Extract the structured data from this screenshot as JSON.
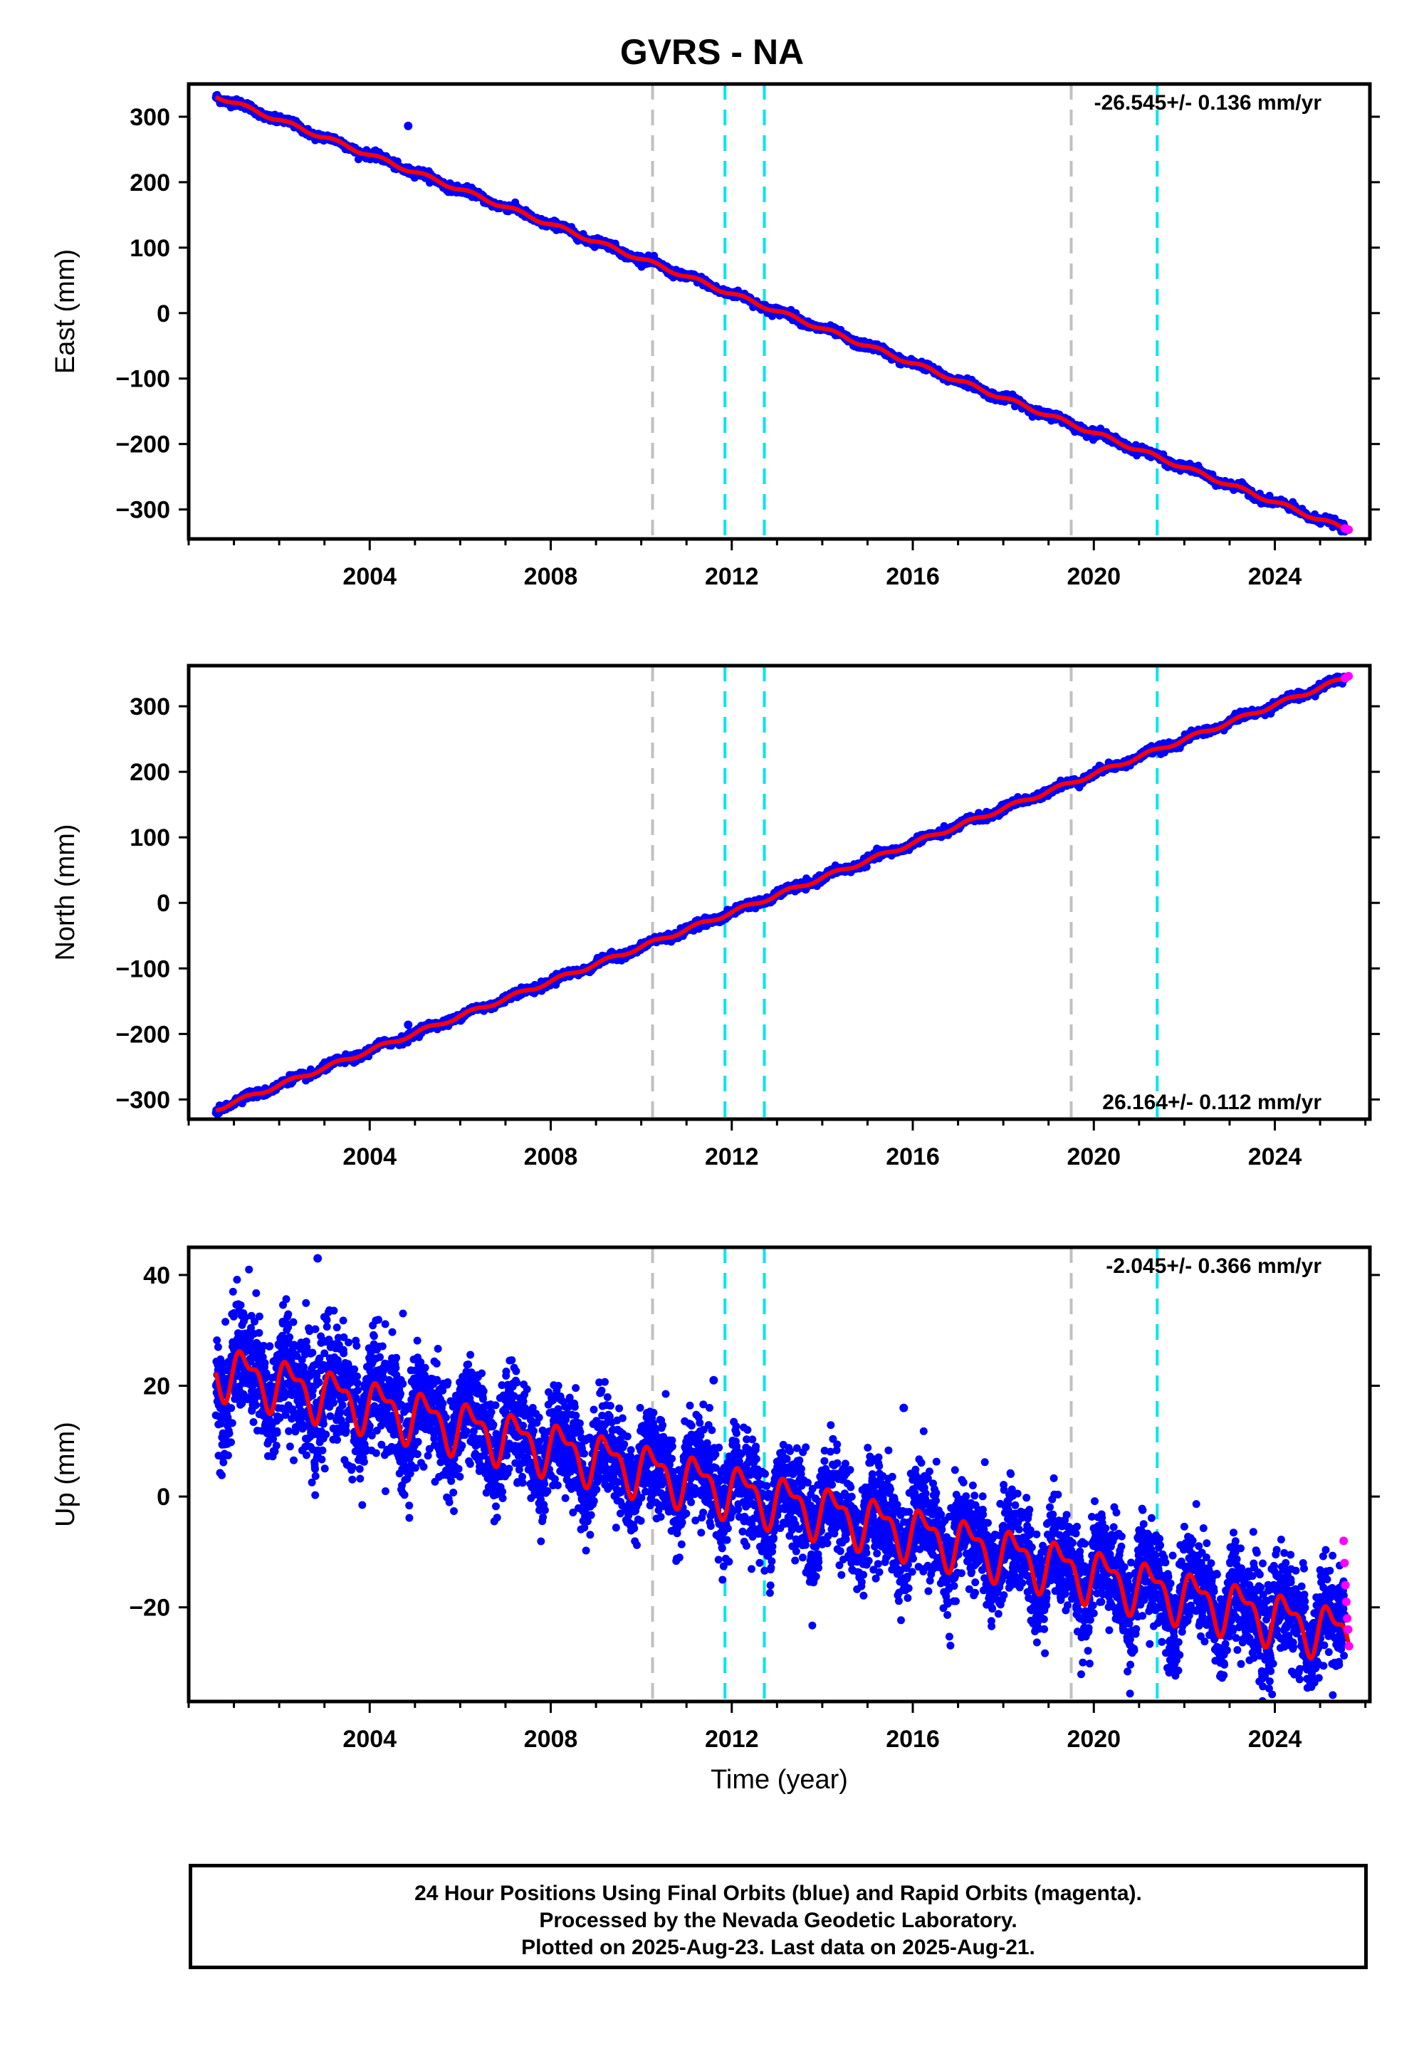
{
  "title": "GVRS - NA",
  "colors": {
    "final_orbits": "#0000ff",
    "rapid_orbits": "#ff00ff",
    "model": "#ff0000",
    "equipment_change": "#c0c0c0",
    "earthquake": "#00e5ee"
  },
  "xlabel": "Time (year)",
  "xticks": [
    2004,
    2008,
    2012,
    2016,
    2020,
    2024
  ],
  "chart_data": [
    {
      "type": "scatter",
      "component": "east",
      "ylabel": "East (mm)",
      "rate_text": "-26.545+/- 0.136 mm/yr",
      "xlim": [
        2000.0,
        2026.1
      ],
      "ylim": [
        -345,
        350
      ],
      "yticks": [
        300,
        200,
        100,
        0,
        -100,
        -200,
        -300
      ],
      "grid": false,
      "trend": {
        "t0": 2000.6,
        "y0": 332,
        "t1": 2025.63,
        "y1": -332
      },
      "seasonal_amplitude": 3,
      "scatter_noise": 3,
      "outliers": [
        {
          "x": 2004.85,
          "y": 286
        }
      ],
      "rapid_points": [
        {
          "x": 2025.55,
          "y": -329
        },
        {
          "x": 2025.6,
          "y": -330
        },
        {
          "x": 2025.63,
          "y": -331
        }
      ],
      "vlines_equipment": [
        2010.25,
        2019.5
      ],
      "vlines_earthquake": [
        2011.85,
        2012.72,
        2021.4
      ]
    },
    {
      "type": "scatter",
      "component": "north",
      "ylabel": "North (mm)",
      "rate_text": "26.164+/- 0.112 mm/yr",
      "xlim": [
        2000.0,
        2026.1
      ],
      "ylim": [
        -330,
        362
      ],
      "yticks": [
        300,
        200,
        100,
        0,
        -100,
        -200,
        -300
      ],
      "grid": false,
      "trend": {
        "t0": 2000.6,
        "y0": -315,
        "t1": 2025.63,
        "y1": 345
      },
      "seasonal_amplitude": 3,
      "scatter_noise": 3,
      "outliers": [
        {
          "x": 2004.85,
          "y": -186
        }
      ],
      "rapid_points": [
        {
          "x": 2025.55,
          "y": 343
        },
        {
          "x": 2025.6,
          "y": 345
        },
        {
          "x": 2025.63,
          "y": 346
        }
      ],
      "vlines_equipment": [
        2010.25,
        2019.5
      ],
      "vlines_earthquake": [
        2011.85,
        2012.72,
        2021.4
      ]
    },
    {
      "type": "scatter",
      "component": "up",
      "ylabel": "Up (mm)",
      "rate_text": "-2.045+/- 0.366 mm/yr",
      "xlim": [
        2000.0,
        2026.1
      ],
      "ylim": [
        -37,
        45
      ],
      "yticks": [
        40,
        20,
        0,
        -20
      ],
      "grid": false,
      "trend": {
        "t0": 2000.6,
        "y0": 23,
        "t1": 2025.63,
        "y1": -25
      },
      "seasonal_amplitude": 4,
      "scatter_noise": 4.5,
      "outliers": [
        {
          "x": 2002.85,
          "y": 43
        },
        {
          "x": 2011.6,
          "y": 21
        },
        {
          "x": 2015.8,
          "y": 16
        }
      ],
      "rapid_points": [
        {
          "x": 2025.52,
          "y": -8
        },
        {
          "x": 2025.54,
          "y": -12
        },
        {
          "x": 2025.56,
          "y": -16
        },
        {
          "x": 2025.58,
          "y": -19
        },
        {
          "x": 2025.6,
          "y": -22
        },
        {
          "x": 2025.62,
          "y": -24
        },
        {
          "x": 2025.64,
          "y": -27
        }
      ],
      "vlines_equipment": [
        2010.25,
        2019.5
      ],
      "vlines_earthquake": [
        2011.85,
        2012.72,
        2021.4
      ]
    }
  ],
  "footer": {
    "line1": "24 Hour Positions Using Final Orbits (blue) and Rapid Orbits (magenta).",
    "line2": "Processed by the Nevada Geodetic Laboratory.",
    "line3": "Plotted on 2025-Aug-23. Last data on 2025-Aug-21."
  }
}
